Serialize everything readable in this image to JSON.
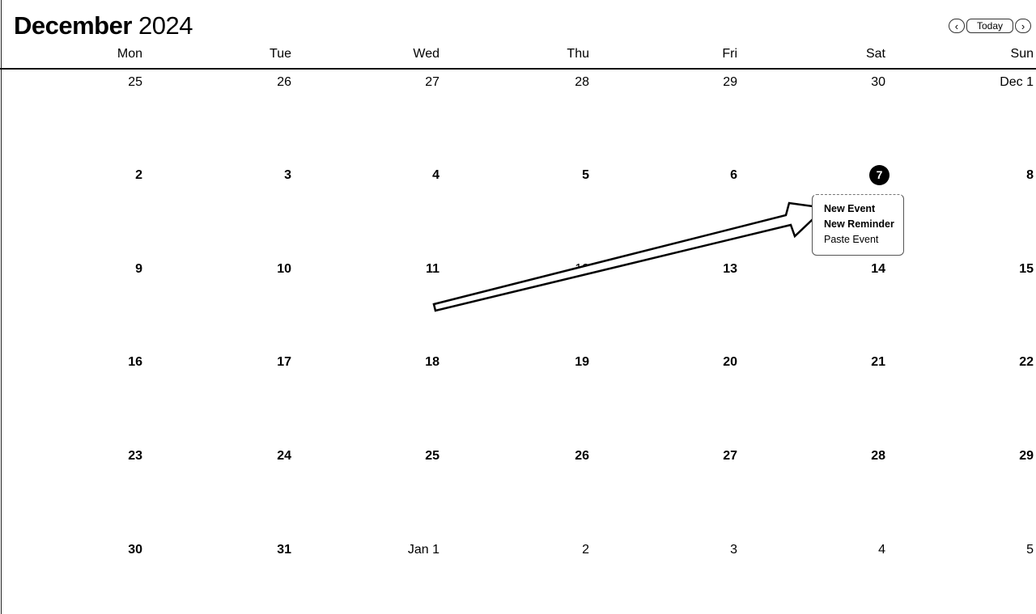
{
  "header": {
    "month": "December",
    "year": "2024",
    "today_label": "Today",
    "prev_glyph": "‹",
    "next_glyph": "›"
  },
  "weekdays": [
    "Mon",
    "Tue",
    "Wed",
    "Thu",
    "Fri",
    "Sat",
    "Sun"
  ],
  "weeks": [
    [
      "25",
      "26",
      "27",
      "28",
      "29",
      "30",
      "Dec 1"
    ],
    [
      "2",
      "3",
      "4",
      "5",
      "6",
      "7",
      "8"
    ],
    [
      "9",
      "10",
      "11",
      "12",
      "13",
      "14",
      "15"
    ],
    [
      "16",
      "17",
      "18",
      "19",
      "20",
      "21",
      "22"
    ],
    [
      "23",
      "24",
      "25",
      "26",
      "27",
      "28",
      "29"
    ],
    [
      "30",
      "31",
      "Jan 1",
      "2",
      "3",
      "4",
      "5"
    ]
  ],
  "today": {
    "week": 1,
    "day": 5
  },
  "context_menu": {
    "items": [
      "New Event",
      "New Reminder",
      "Paste Event"
    ]
  }
}
